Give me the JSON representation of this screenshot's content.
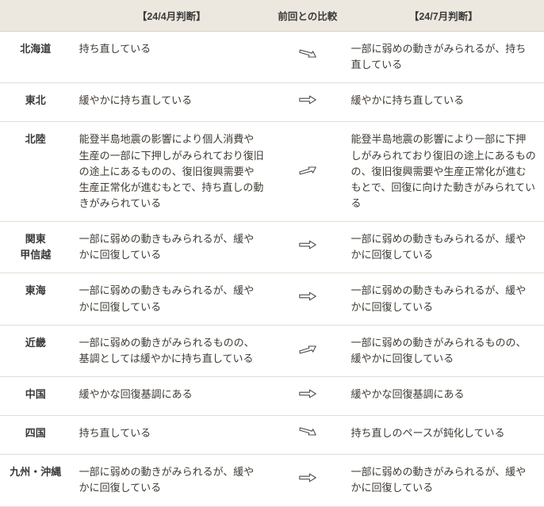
{
  "header": {
    "col_region": "",
    "col_apr": "【24/4月判断】",
    "col_comp": "前回との比較",
    "col_jul": "【24/7月判断】"
  },
  "arrow_stroke": "#4a4a4a",
  "rows": [
    {
      "region": "北海道",
      "apr": "持ち直している",
      "comp": "down",
      "jul": "一部に弱めの動きがみられるが、持ち直している"
    },
    {
      "region": "東北",
      "apr": "緩やかに持ち直している",
      "comp": "flat",
      "jul": "緩やかに持ち直している"
    },
    {
      "region": "北陸",
      "apr": "能登半島地震の影響により個人消費や生産の一部に下押しがみられており復旧の途上にあるものの、復旧復興需要や生産正常化が進むもとで、持ち直しの動きがみられている",
      "comp": "up",
      "jul": "能登半島地震の影響により一部に下押しがみられており復旧の途上にあるものの、復旧復興需要や生産正常化が進むもとで、回復に向けた動きがみられている"
    },
    {
      "region": "関東\n甲信越",
      "apr": "一部に弱めの動きもみられるが、緩やかに回復している",
      "comp": "flat",
      "jul": "一部に弱めの動きもみられるが、緩やかに回復している"
    },
    {
      "region": "東海",
      "apr": "一部に弱めの動きもみられるが、緩やかに回復している",
      "comp": "flat",
      "jul": "一部に弱めの動きもみられるが、緩やかに回復している"
    },
    {
      "region": "近畿",
      "apr": "一部に弱めの動きがみられるものの、基調としては緩やかに持ち直している",
      "comp": "up",
      "jul": "一部に弱めの動きがみられるものの、緩やかに回復している"
    },
    {
      "region": "中国",
      "apr": "緩やかな回復基調にある",
      "comp": "flat",
      "jul": "緩やかな回復基調にある"
    },
    {
      "region": "四国",
      "apr": "持ち直している",
      "comp": "down",
      "jul": "持ち直しのペースが鈍化している"
    },
    {
      "region": "九州・沖縄",
      "apr": "一部に弱めの動きがみられるが、緩やかに回復している",
      "comp": "flat",
      "jul": "一部に弱めの動きがみられるが、緩やかに回復している"
    }
  ]
}
